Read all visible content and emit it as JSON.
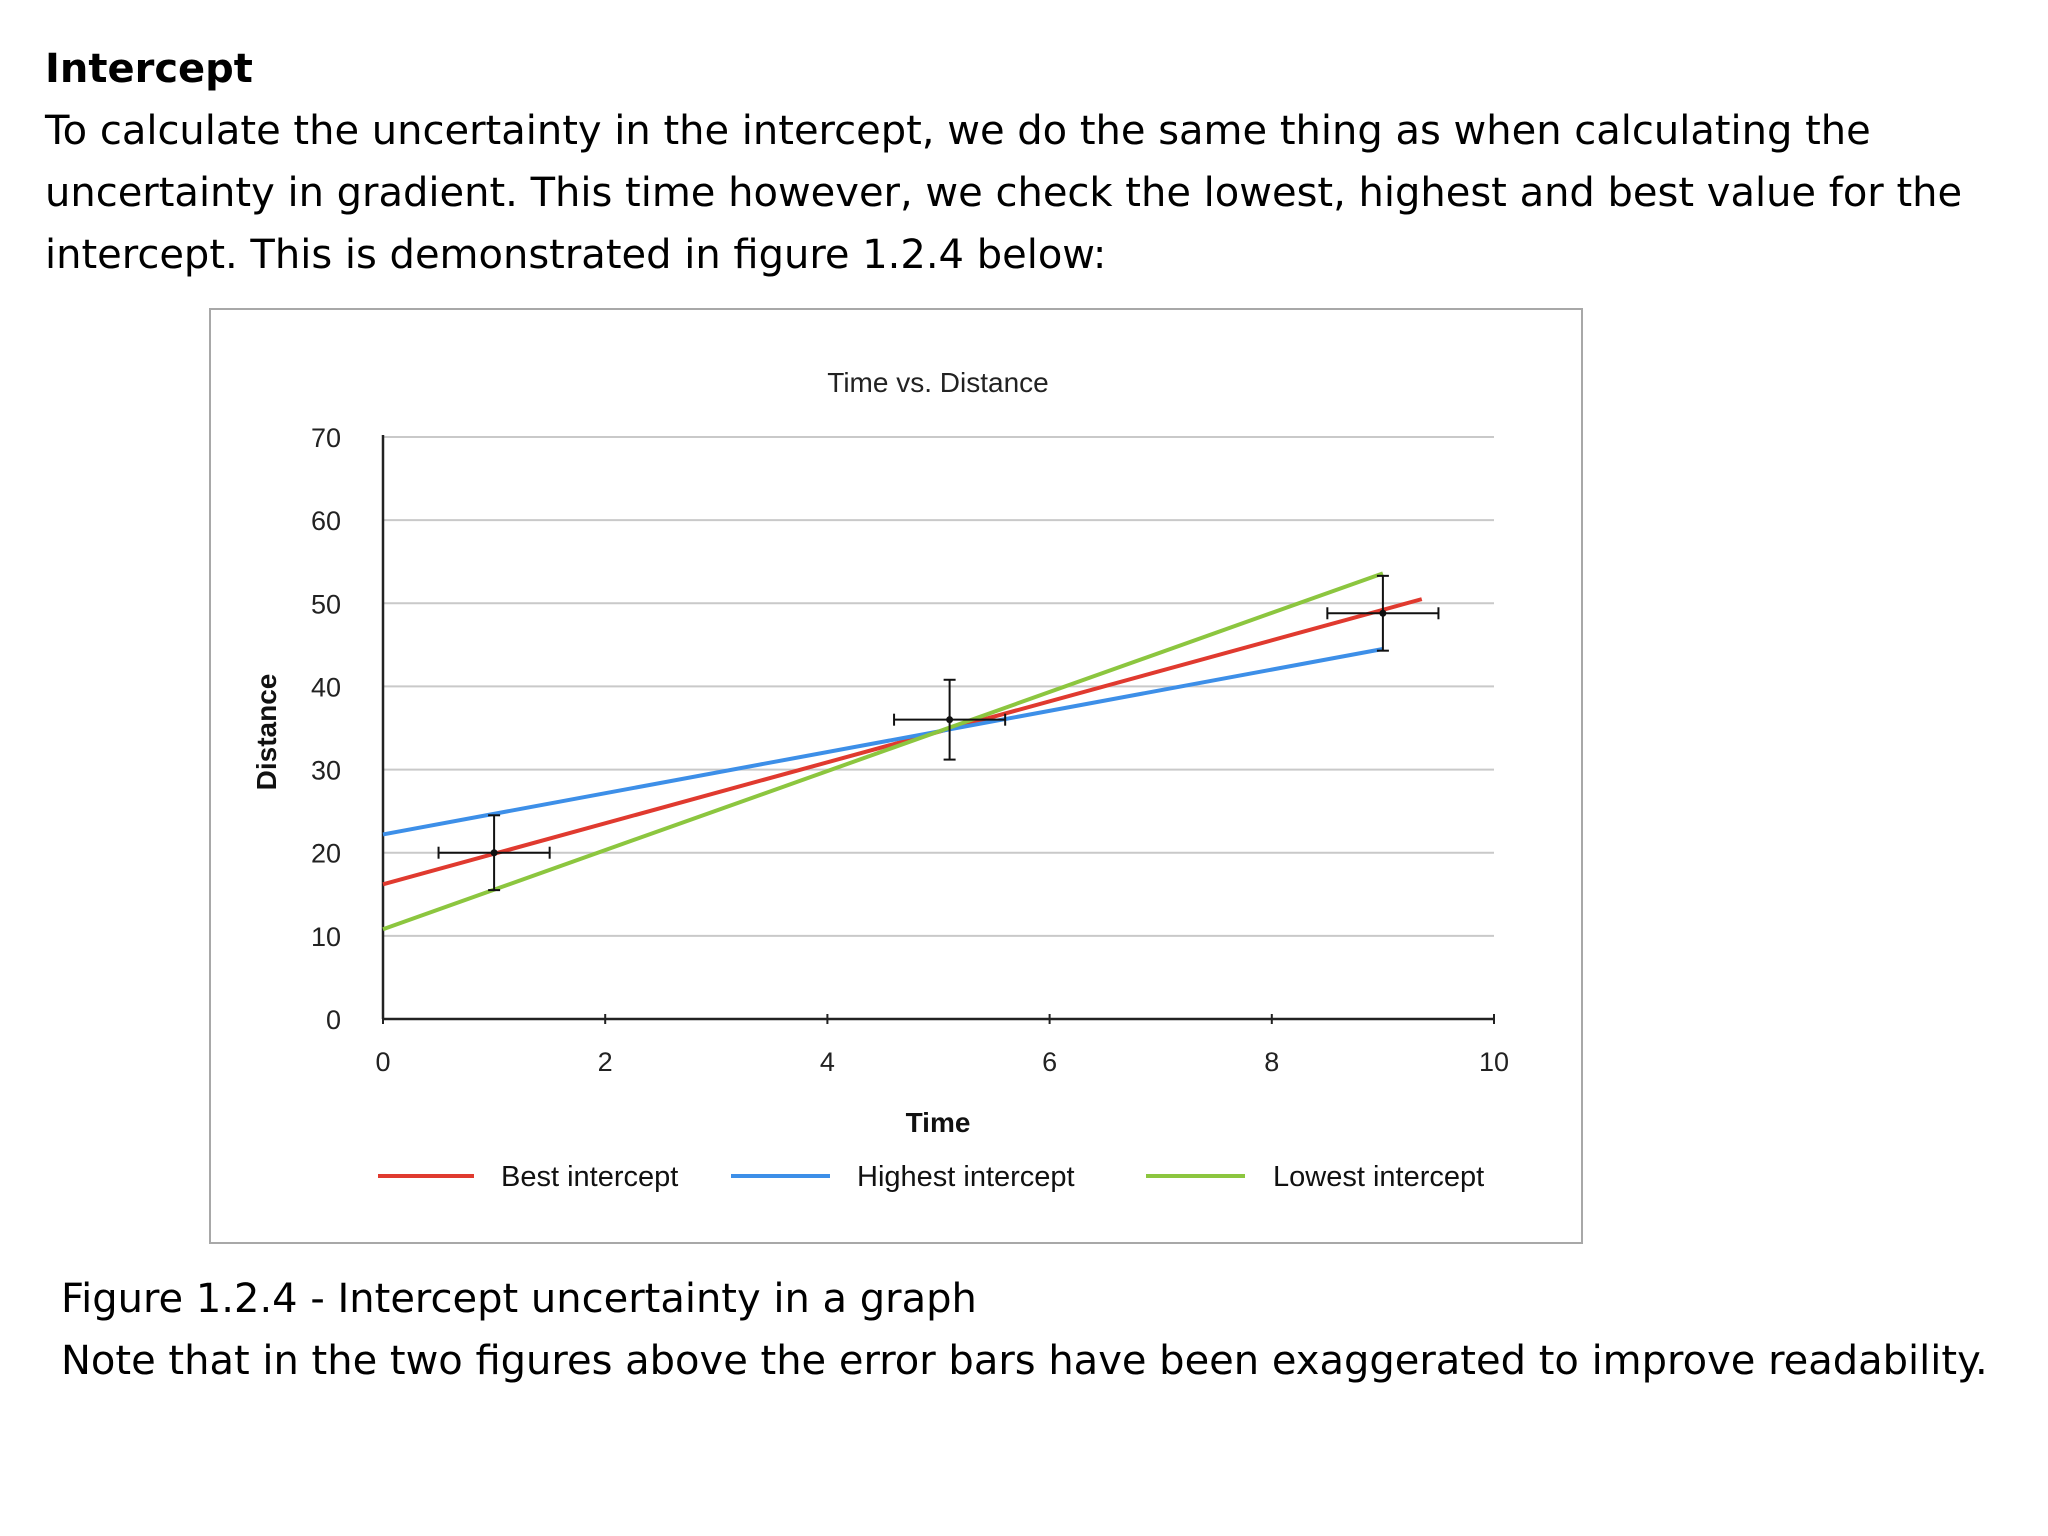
{
  "heading": "Intercept",
  "intro": "To calculate the uncertainty in the intercept, we do the same thing as when calculating the uncertainty in gradient. This time however, we check the lowest, highest and best value for the intercept. This is demonstrated in figure 1.2.4 below:",
  "caption": {
    "line1": "Figure 1.2.4 - Intercept uncertainty in a graph",
    "line2": "Note that in the two figures above the error bars have been exaggerated to improve readability."
  },
  "chart_data": {
    "type": "line",
    "title": "Time vs. Distance",
    "xlabel": "Time",
    "ylabel": "Distance",
    "xlim": [
      0,
      10
    ],
    "ylim": [
      0,
      70
    ],
    "xticks": [
      0,
      2,
      4,
      6,
      8,
      10
    ],
    "yticks": [
      0,
      10,
      20,
      30,
      40,
      50,
      60,
      70
    ],
    "grid": true,
    "legend_position": "bottom",
    "series": [
      {
        "name": "Best intercept",
        "color": "#e03a2f",
        "x": [
          0,
          9.35
        ],
        "y": [
          16.2,
          50.5
        ]
      },
      {
        "name": "Highest intercept",
        "color": "#3d8fe8",
        "x": [
          0,
          9
        ],
        "y": [
          22.2,
          44.5
        ]
      },
      {
        "name": "Lowest intercept",
        "color": "#8cc63f",
        "x": [
          0,
          9
        ],
        "y": [
          10.8,
          53.6
        ]
      }
    ],
    "data_points": [
      {
        "x": 1.0,
        "y": 20.0,
        "x_err": 0.5,
        "y_err": 4.5
      },
      {
        "x": 5.1,
        "y": 36.0,
        "x_err": 0.5,
        "y_err": 4.8
      },
      {
        "x": 9.0,
        "y": 48.8,
        "x_err": 0.5,
        "y_err": 4.5
      }
    ]
  }
}
